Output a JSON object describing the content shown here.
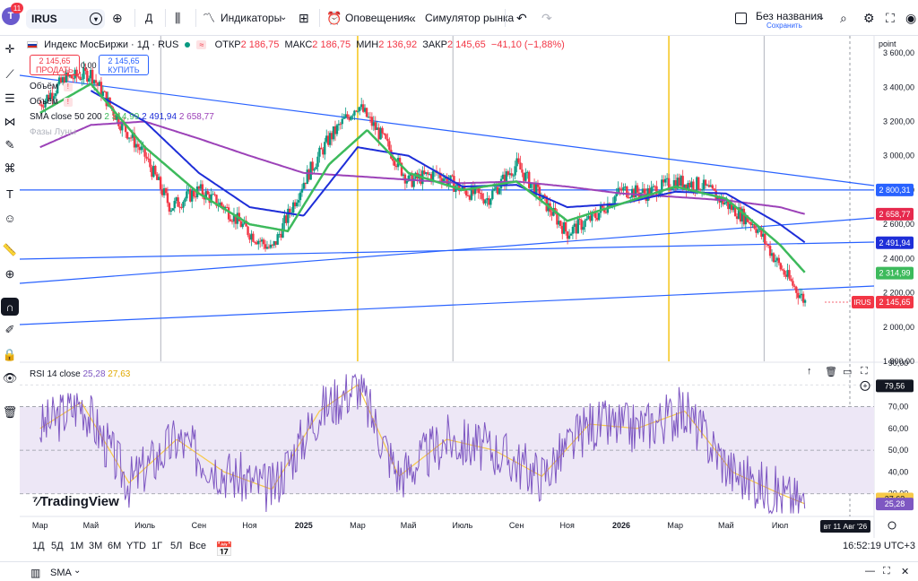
{
  "topbar": {
    "avatar_letter": "T",
    "notifications": "11",
    "symbol": "IRUS",
    "interval": "Д",
    "indicators_label": "Индикаторы",
    "alerts_label": "Оповещения",
    "replay_label": "Симулятор рынка",
    "layout_name": "Без названия",
    "layout_save": "Сохранить",
    "icons": [
      "symbol-menu-icon",
      "add-symbol-icon",
      "candles-icon",
      "indicators-icon",
      "templates-icon",
      "alert-icon",
      "replay-icon",
      "undo-icon",
      "redo-icon",
      "settings-icon",
      "camera-icon",
      "publish-icon"
    ]
  },
  "legend": {
    "instrument": "Индекс МосБиржи · 1Д · RUS",
    "open_label": "ОТКР",
    "open": "2 186,75",
    "high_label": "МАКС",
    "high": "2 186,75",
    "low_label": "МИН",
    "low": "2 136,92",
    "close_label": "ЗАКР",
    "close": "2 145,65",
    "change": "−41,10 (−1,88%)",
    "sell_price": "2 145,65",
    "sell_label": "ПРОДАТЬ",
    "buy_price": "2 145,65",
    "buy_label": "КУПИТЬ",
    "spread": "0,00",
    "volume_1": "Объём",
    "volume_2": "Объём",
    "sma_label": "SMA close 50 200",
    "sma_v1": "2 314,99",
    "sma_v2": "2 491,94",
    "sma_v3": "2 658,77",
    "faded_label": "Фазы Луны",
    "rsi_label": "RSI 14 close",
    "rsi_v1": "25,28",
    "rsi_v2": "27,63"
  },
  "price_axis": {
    "unit_label": "point",
    "ticks": [
      "3 600,00",
      "3 400,00",
      "3 200,00",
      "3 000,00",
      "2 800,00",
      "2 600,00",
      "2 400,00",
      "2 200,00",
      "2 000,00",
      "1 800,00"
    ],
    "badges": [
      {
        "value": "2 800,31",
        "color": "#2962ff",
        "text_color": "#ffffff"
      },
      {
        "value": "2 658,77",
        "color": "#e6294d",
        "text_color": "#ffffff"
      },
      {
        "value": "2 491,94",
        "color": "#1e2ed8",
        "text_color": "#ffffff"
      },
      {
        "value": "2 314,99",
        "color": "#3dba5c",
        "text_color": "#ffffff"
      },
      {
        "value": "2 145,65",
        "color": "#f23645",
        "text_color": "#ffffff",
        "tag": "IRUS"
      }
    ]
  },
  "rsi_axis": {
    "ticks": [
      "90,00",
      "70,00",
      "60,00",
      "50,00",
      "40,00",
      "30,00"
    ],
    "badges": [
      {
        "value": "79,56",
        "color": "#131722"
      },
      {
        "value": "27,63",
        "color": "#f7c948"
      },
      {
        "value": "25,28",
        "color": "#7e57c2"
      }
    ]
  },
  "time_axis": {
    "labels": [
      "Мар",
      "Май",
      "Июль",
      "Сен",
      "Ноя",
      "2025",
      "Мар",
      "Май",
      "Июль",
      "Сен",
      "Ноя",
      "2026",
      "Мар",
      "Май",
      "Июл"
    ],
    "cursor_label": "вт 11 Авг '26"
  },
  "range_bar": {
    "ranges": [
      "1Д",
      "5Д",
      "1М",
      "3М",
      "6М",
      "YTD",
      "1Г",
      "5Л",
      "Все"
    ],
    "clock": "16:52:19 UTC+3"
  },
  "bottom_bar": {
    "indicator": "SMA"
  },
  "logo_text": "TradingView",
  "colors": {
    "up": "#089981",
    "down": "#f23645",
    "trend": "#2962ff",
    "sma50": "#3dba5c",
    "sma_mid": "#1e2ed8",
    "sma200": "#9c42b8",
    "vline_yellow": "#f5c518",
    "vline_gray": "#b2b5be",
    "rsi": "#7e57c2",
    "rsi_ma": "#f7c948",
    "rsi_band": "#ede7f6"
  },
  "chart_data": {
    "type": "candlestick",
    "y_range": [
      1800,
      3700
    ],
    "rsi_range": [
      20,
      90
    ],
    "rsi_levels": [
      70,
      50,
      30
    ],
    "horizontal_line": 2800.31,
    "price_series": [
      [
        2024.17,
        3300
      ],
      [
        2024.25,
        3450
      ],
      [
        2024.33,
        3480
      ],
      [
        2024.42,
        3200
      ],
      [
        2024.5,
        3000
      ],
      [
        2024.58,
        2700
      ],
      [
        2024.67,
        2800
      ],
      [
        2024.75,
        2700
      ],
      [
        2024.83,
        2550
      ],
      [
        2024.9,
        2450
      ],
      [
        2025.0,
        2850
      ],
      [
        2025.08,
        3100
      ],
      [
        2025.17,
        3300
      ],
      [
        2025.25,
        3100
      ],
      [
        2025.33,
        2850
      ],
      [
        2025.42,
        2900
      ],
      [
        2025.5,
        2800
      ],
      [
        2025.58,
        2750
      ],
      [
        2025.67,
        2950
      ],
      [
        2025.75,
        2750
      ],
      [
        2025.83,
        2550
      ],
      [
        2025.92,
        2650
      ],
      [
        2026.0,
        2800
      ],
      [
        2026.08,
        2780
      ],
      [
        2026.17,
        2850
      ],
      [
        2026.25,
        2830
      ],
      [
        2026.33,
        2720
      ],
      [
        2026.42,
        2600
      ],
      [
        2026.5,
        2350
      ],
      [
        2026.58,
        2145.65
      ]
    ],
    "sma50": [
      [
        2024.17,
        3250
      ],
      [
        2024.33,
        3420
      ],
      [
        2024.5,
        3050
      ],
      [
        2024.67,
        2780
      ],
      [
        2024.83,
        2600
      ],
      [
        2024.95,
        2560
      ],
      [
        2025.08,
        2950
      ],
      [
        2025.2,
        3150
      ],
      [
        2025.33,
        2900
      ],
      [
        2025.5,
        2800
      ],
      [
        2025.67,
        2850
      ],
      [
        2025.83,
        2620
      ],
      [
        2026.0,
        2720
      ],
      [
        2026.17,
        2820
      ],
      [
        2026.33,
        2750
      ],
      [
        2026.5,
        2480
      ],
      [
        2026.58,
        2314.99
      ]
    ],
    "sma_mid": [
      [
        2024.33,
        3380
      ],
      [
        2024.5,
        3200
      ],
      [
        2024.67,
        2900
      ],
      [
        2024.83,
        2700
      ],
      [
        2025.0,
        2650
      ],
      [
        2025.17,
        3050
      ],
      [
        2025.33,
        3000
      ],
      [
        2025.5,
        2820
      ],
      [
        2025.67,
        2830
      ],
      [
        2025.83,
        2700
      ],
      [
        2026.0,
        2720
      ],
      [
        2026.17,
        2790
      ],
      [
        2026.33,
        2780
      ],
      [
        2026.5,
        2600
      ],
      [
        2026.58,
        2491.94
      ]
    ],
    "sma200": [
      [
        2024.17,
        3050
      ],
      [
        2024.33,
        3180
      ],
      [
        2024.5,
        3200
      ],
      [
        2024.67,
        3100
      ],
      [
        2024.83,
        3000
      ],
      [
        2025.0,
        2900
      ],
      [
        2025.17,
        2880
      ],
      [
        2025.33,
        2860
      ],
      [
        2025.5,
        2840
      ],
      [
        2025.67,
        2850
      ],
      [
        2025.83,
        2820
      ],
      [
        2026.0,
        2780
      ],
      [
        2026.17,
        2760
      ],
      [
        2026.33,
        2740
      ],
      [
        2026.5,
        2700
      ],
      [
        2026.58,
        2658.77
      ]
    ],
    "rsi": [
      [
        2024.17,
        60
      ],
      [
        2024.3,
        72
      ],
      [
        2024.45,
        35
      ],
      [
        2024.6,
        55
      ],
      [
        2024.75,
        40
      ],
      [
        2024.9,
        32
      ],
      [
        2025.05,
        68
      ],
      [
        2025.17,
        80
      ],
      [
        2025.3,
        38
      ],
      [
        2025.45,
        55
      ],
      [
        2025.6,
        50
      ],
      [
        2025.75,
        38
      ],
      [
        2025.9,
        62
      ],
      [
        2026.05,
        60
      ],
      [
        2026.2,
        68
      ],
      [
        2026.35,
        40
      ],
      [
        2026.5,
        30
      ],
      [
        2026.58,
        25.28
      ]
    ]
  }
}
